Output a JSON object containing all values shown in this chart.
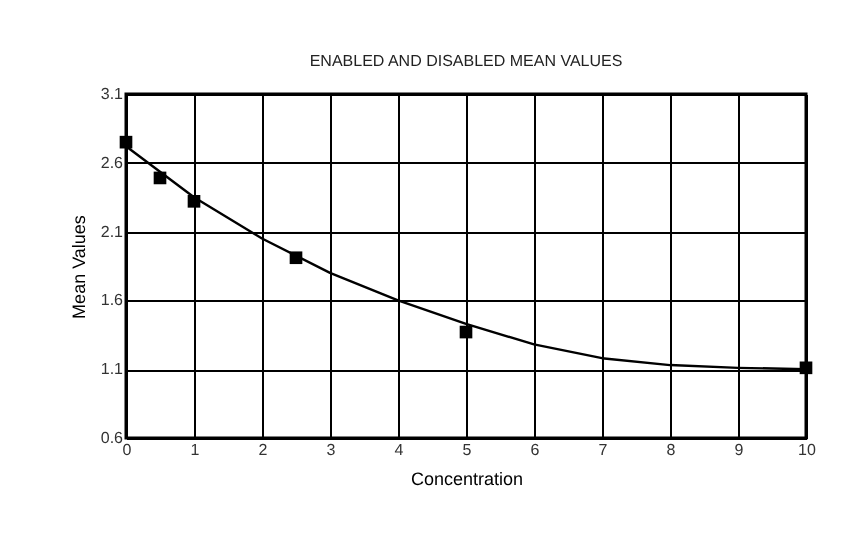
{
  "chart_data": {
    "type": "scatter",
    "title": "ENABLED AND DISABLED MEAN VALUES",
    "xlabel": "Concentration",
    "ylabel": "Mean Values",
    "xlim": [
      0,
      10
    ],
    "xticks": [
      0,
      1,
      2,
      3,
      4,
      5,
      6,
      7,
      8,
      9,
      10
    ],
    "ylim": [
      0.6,
      3.1
    ],
    "yticks": [
      0.6,
      1.1,
      1.6,
      2.1,
      2.6,
      3.1
    ],
    "grid": true,
    "series": [
      {
        "color": "#000000",
        "marker": "square",
        "x": [
          0,
          0.5,
          1,
          2.5,
          5,
          10
        ],
        "values": [
          2.75,
          2.49,
          2.32,
          1.91,
          1.37,
          1.11
        ]
      },
      {
        "type": "line",
        "color": "#000000",
        "marker": "none",
        "line_style": "solid",
        "x": [
          0,
          1,
          2,
          3,
          4,
          5,
          6,
          7,
          8,
          9,
          10
        ],
        "values": [
          2.72,
          2.35,
          2.05,
          1.8,
          1.6,
          1.43,
          1.28,
          1.18,
          1.13,
          1.11,
          1.1
        ]
      }
    ]
  }
}
